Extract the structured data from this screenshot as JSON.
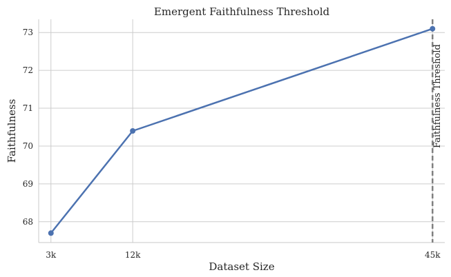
{
  "chart_data": {
    "type": "line",
    "title": "Emergent Faithfulness Threshold",
    "xlabel": "Dataset Size",
    "ylabel": "Faithfulness",
    "x": [
      3000,
      12000,
      45000
    ],
    "categories": [
      "3k",
      "12k",
      "45k"
    ],
    "series": [
      {
        "values": [
          67.7,
          70.4,
          73.1
        ],
        "color": "#4c72b0"
      }
    ],
    "ylim": [
      67.45,
      73.35
    ],
    "xlim": [
      1650,
      46350
    ],
    "yticks": [
      68,
      69,
      70,
      71,
      72,
      73
    ],
    "grid": true,
    "threshold": {
      "x": 45000,
      "label": "Faithfulness Threshold",
      "color": "#808080",
      "style": "dashed"
    }
  }
}
